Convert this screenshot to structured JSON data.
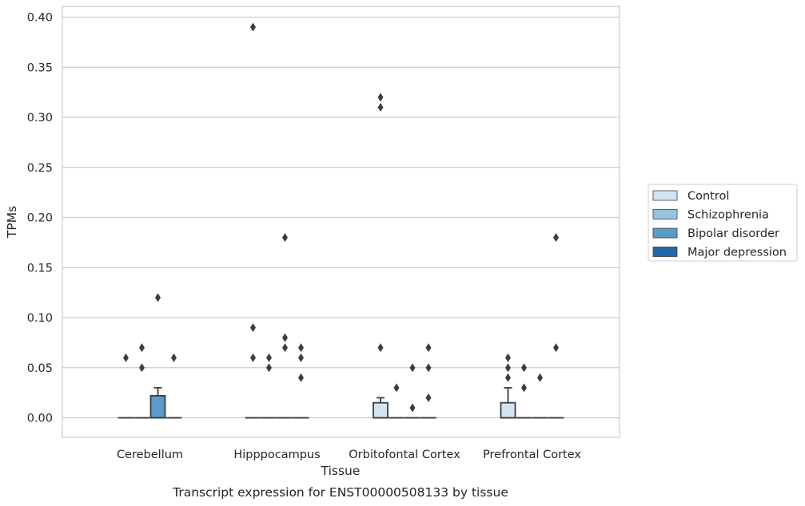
{
  "chart_data": {
    "type": "box",
    "xlabel": "Tissue",
    "ylabel": "TPMs",
    "caption": "Transcript expression for ENST00000508133 by tissue",
    "ylim": [
      -0.019,
      0.41
    ],
    "yticks": [
      "0.00",
      "0.05",
      "0.10",
      "0.15",
      "0.20",
      "0.25",
      "0.30",
      "0.35",
      "0.40"
    ],
    "grid": "horizontal",
    "legend_position": "right",
    "categories": [
      "Cerebellum",
      "Hipppocampus",
      "Orbitofontal Cortex",
      "Prefrontal Cortex"
    ],
    "series": [
      {
        "name": "Control",
        "color": "#d4e3f2"
      },
      {
        "name": "Schizophrenia",
        "color": "#9ac3dd"
      },
      {
        "name": "Bipolar disorder",
        "color": "#5b9bc8"
      },
      {
        "name": "Major depression",
        "color": "#2566a9"
      }
    ],
    "boxes": [
      [
        {
          "q1": 0,
          "median": 0,
          "q3": 0,
          "whisker_high": 0,
          "outliers": [
            0.06
          ]
        },
        {
          "q1": 0,
          "median": 0,
          "q3": 0,
          "whisker_high": 0,
          "outliers": [
            0.07,
            0.05
          ]
        },
        {
          "q1": 0,
          "median": 0,
          "q3": 0.022,
          "whisker_high": 0.03,
          "outliers": [
            0.12
          ]
        },
        {
          "q1": 0,
          "median": 0,
          "q3": 0,
          "whisker_high": 0,
          "outliers": [
            0.06
          ]
        }
      ],
      [
        {
          "q1": 0,
          "median": 0,
          "q3": 0,
          "whisker_high": 0,
          "outliers": [
            0.39,
            0.09,
            0.06
          ]
        },
        {
          "q1": 0,
          "median": 0,
          "q3": 0,
          "whisker_high": 0,
          "outliers": [
            0.06,
            0.05
          ]
        },
        {
          "q1": 0,
          "median": 0,
          "q3": 0,
          "whisker_high": 0,
          "outliers": [
            0.18,
            0.08,
            0.07
          ]
        },
        {
          "q1": 0,
          "median": 0,
          "q3": 0,
          "whisker_high": 0,
          "outliers": [
            0.07,
            0.06,
            0.04
          ]
        }
      ],
      [
        {
          "q1": 0,
          "median": 0,
          "q3": 0.015,
          "whisker_high": 0.02,
          "outliers": [
            0.32,
            0.31,
            0.07
          ]
        },
        {
          "q1": 0,
          "median": 0,
          "q3": 0,
          "whisker_high": 0,
          "outliers": [
            0.03
          ]
        },
        {
          "q1": 0,
          "median": 0,
          "q3": 0,
          "whisker_high": 0,
          "outliers": [
            0.05,
            0.01
          ]
        },
        {
          "q1": 0,
          "median": 0,
          "q3": 0,
          "whisker_high": 0,
          "outliers": [
            0.07,
            0.05,
            0.02
          ]
        }
      ],
      [
        {
          "q1": 0,
          "median": 0,
          "q3": 0.015,
          "whisker_high": 0.03,
          "outliers": [
            0.06,
            0.05,
            0.04
          ]
        },
        {
          "q1": 0,
          "median": 0,
          "q3": 0,
          "whisker_high": 0,
          "outliers": [
            0.05,
            0.03
          ]
        },
        {
          "q1": 0,
          "median": 0,
          "q3": 0,
          "whisker_high": 0,
          "outliers": [
            0.04
          ]
        },
        {
          "q1": 0,
          "median": 0,
          "q3": 0,
          "whisker_high": 0,
          "outliers": [
            0.18,
            0.07
          ]
        }
      ]
    ]
  }
}
